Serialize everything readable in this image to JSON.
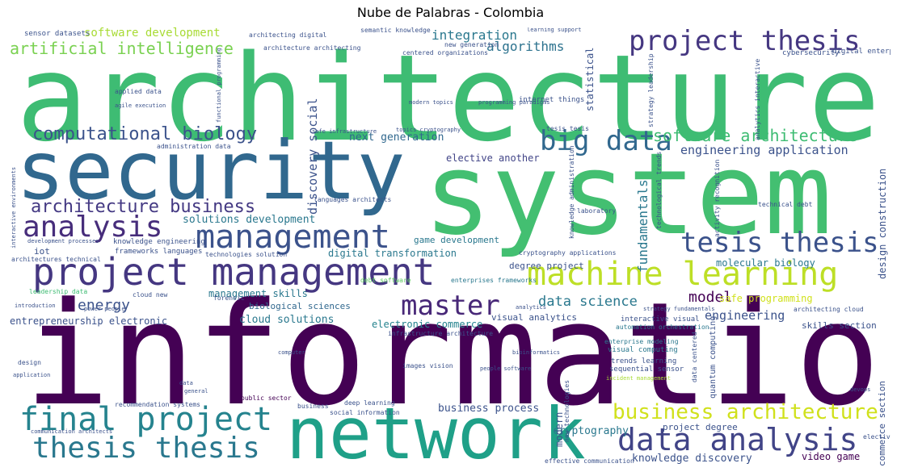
{
  "title": "Nube de Palabras - Colombia",
  "palette": [
    "#440154",
    "#3b528b",
    "#21918c",
    "#5ec962",
    "#fde725"
  ],
  "words": {
    "information": "information",
    "architecture": "architecture",
    "system": "system",
    "security": "security",
    "network": "network",
    "project_management": "project management",
    "machine_learning": "machine learning",
    "project_thesis": "project thesis",
    "management": "management",
    "final_project": "final project",
    "data_analysis": "data analysis",
    "thesis_thesis": "thesis thesis",
    "analysis": "analysis",
    "big_data": "big data",
    "master": "master",
    "tesis_thesis": "tesis thesis",
    "business_architecture": "business architecture",
    "architecture_business": "architecture business",
    "computational_biology": "computational biology",
    "artificial_intelligence": "artificial intelligence",
    "software_architecture": "software architecture",
    "engineering_application": "engineering application",
    "energy": "energy",
    "model": "model",
    "data_science": "data science",
    "software_development": "software development",
    "integration": "integration",
    "algorithms": "algorithms",
    "next_generation": "next generation",
    "elective_another": "elective another",
    "solutions_development": "solutions development",
    "fundamentals": "fundamentals",
    "cryptography": "cryptography",
    "business_process": "business process",
    "knowledge_discovery": "knowledge discovery",
    "video_game": "video game",
    "engineering": "engineering",
    "cloud_solutions": "cloud solutions",
    "electronic_commerce": "electronic commerce",
    "entrepreneurship_electronic": "entrepreneurship electronic",
    "digital_transformation": "digital transformation",
    "molecular_biology": "molecular biology",
    "management_skills": "management skills",
    "skills_section": "skills section",
    "design_construction": "design construction",
    "discovery_social": "discovery social",
    "statistical": "statistical",
    "visual_analytics": "visual analytics",
    "safe_programming": "safe programming",
    "game_development": "game development",
    "degree_project": "degree project",
    "biological_sciences": "biological sciences",
    "project_degree": "project degree",
    "modern": "modern",
    "commerce_section": "commerce section",
    "iot": "iot",
    "quantum_computing": "quantum computing",
    "knowledge_engineering": "knowledge engineering",
    "architectures_technical": "architectures technical",
    "leadership_data": "leadership data",
    "cloud_new": "cloud new",
    "forensic": "forensic",
    "debt_software": "debt software",
    "enterprises_frameworks": "enterprises frameworks",
    "cryptography_applications": "cryptography applications",
    "interactive_visual": "interactive visual",
    "automation_orchestration": "automation orchestration",
    "enterprise_modeling": "enterprise modeling",
    "visual_computing": "visual computing",
    "trends_learning": "trends learning",
    "sequential_sensor": "sequential sensor",
    "incident_management": "incident management",
    "recommendation_systems": "recommendation systems",
    "public_sector": "public sector",
    "deep_learning": "deep learning",
    "social_information": "social information",
    "business": "business",
    "images_vision": "images vision",
    "effective_communication": "effective communication",
    "data_centered": "data centered",
    "frameworks_languages": "frameworks languages",
    "technologies_solution": "technologies solution",
    "development_processes": "development processes",
    "laboratory": "laboratory",
    "languages_architects": "languages architects",
    "internet_things": "internet things",
    "technical_debt": "technical debt",
    "activity_recognition": "activity recognition",
    "analytics_interactive": "analytics interactive",
    "strategy_leadership": "strategy leadership",
    "tesis_tesis": "tesis tesis",
    "technological_trends": "technological trends",
    "cybersecurity": "cybersecurity",
    "digital_enterprises": "digital enterprises",
    "sensor_datasets": "sensor datasets",
    "architecting_digital": "architecting digital",
    "architecture_architecting": "architecture architecting",
    "semantic_knowledge": "semantic knowledge",
    "new_generation": "new generation",
    "centered_organizations": "centered organizations",
    "learning_support": "learning support",
    "applied_data": "applied data",
    "agile_execution": "agile execution",
    "administration_data": "administration data",
    "safe_infrastructure": "safe infrastructure",
    "topics_cryptography": "topics cryptography",
    "programming_paradigms": "programming paradigms",
    "modern_topics": "modern topics",
    "infrastructure_architecture": "infrastructure architecture",
    "strategy_fundamentals": "strategy fundamentals",
    "architecting_cloud": "architecting cloud",
    "analytics": "analytics",
    "power_people": "power people",
    "introduction": "introduction",
    "design": "design",
    "application": "application",
    "general": "general",
    "data": "data",
    "communication_architects": "communication architects",
    "computer": "computer",
    "devops": "devops",
    "elective": "elective",
    "people_software": "people software",
    "bioinformatics": "bioinformatics",
    "new_technologies": "new technologies",
    "interactive_environments": "interactive environments",
    "functional_programming": "functional programming",
    "knowledge_administration": "knowledge administration"
  }
}
